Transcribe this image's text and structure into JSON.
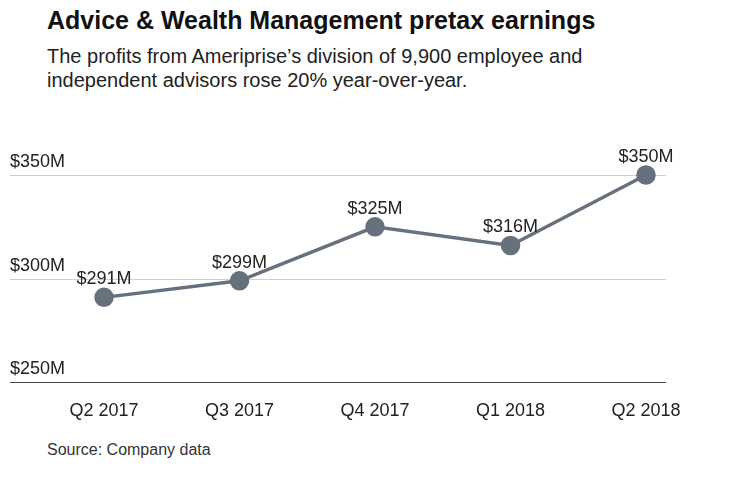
{
  "chart_data": {
    "type": "line",
    "title": "Advice & Wealth Management pretax earnings",
    "subtitle": "The profits from Ameriprise’s division of 9,900 employee and independent advisors rose 20% year-over-year.",
    "source": "Source: Company data",
    "categories": [
      "Q2 2017",
      "Q3 2017",
      "Q4 2017",
      "Q1 2018",
      "Q2 2018"
    ],
    "values": [
      291,
      299,
      325,
      316,
      350
    ],
    "value_labels": [
      "$291M",
      "$299M",
      "$325M",
      "$316M",
      "$350M"
    ],
    "data_labels": true,
    "color": "#67717e",
    "marker": "circle",
    "ylim": [
      250,
      350
    ],
    "yticks": [
      {
        "value": 250,
        "label": "$250M"
      },
      {
        "value": 300,
        "label": "$300M"
      },
      {
        "value": 350,
        "label": "$350M"
      }
    ],
    "grid": true
  }
}
